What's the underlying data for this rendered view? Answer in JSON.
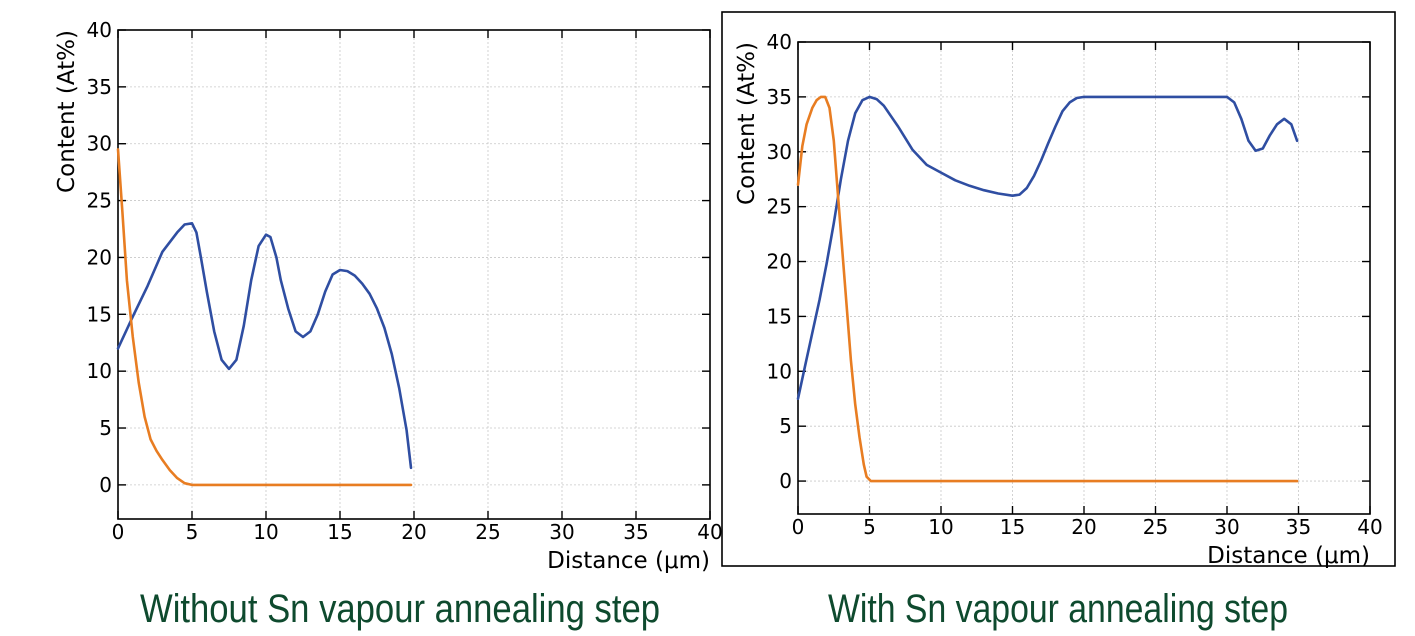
{
  "colors": {
    "series_1": "#2f4ea2",
    "series_2": "#e87d22",
    "caption": "#0e4a2e",
    "grid": "#c8c8c8"
  },
  "chart_data": [
    {
      "type": "line",
      "title": "",
      "caption": "Without Sn vapour annealing step",
      "xlabel": "Distance (μm)",
      "ylabel": "Content (At%)",
      "xlim": [
        0,
        40
      ],
      "ylim": [
        -3,
        40
      ],
      "xticks": [
        0,
        5,
        10,
        15,
        20,
        25,
        30,
        35,
        40
      ],
      "yticks": [
        0,
        5,
        10,
        15,
        20,
        25,
        30,
        35,
        40
      ],
      "grid": true,
      "framed": false,
      "series": [
        {
          "color": "blue",
          "x": [
            0,
            1,
            2,
            3,
            4,
            4.5,
            5,
            5.3,
            5.6,
            6,
            6.5,
            7,
            7.5,
            8,
            8.5,
            9,
            9.5,
            10,
            10.3,
            10.7,
            11,
            11.5,
            12,
            12.5,
            13,
            13.5,
            14,
            14.5,
            15,
            15.5,
            16,
            16.5,
            17,
            17.5,
            18,
            18.5,
            19,
            19.5,
            19.8
          ],
          "y": [
            12,
            14.8,
            17.5,
            20.5,
            22.2,
            22.9,
            23,
            22.2,
            20,
            17,
            13.5,
            11,
            10.2,
            11,
            14,
            18,
            21,
            22,
            21.8,
            20,
            18,
            15.5,
            13.5,
            13,
            13.5,
            15,
            17,
            18.5,
            18.9,
            18.8,
            18.4,
            17.7,
            16.8,
            15.5,
            13.8,
            11.5,
            8.5,
            4.8,
            1.5
          ]
        },
        {
          "color": "orange",
          "x": [
            0,
            0.3,
            0.6,
            1,
            1.4,
            1.8,
            2.2,
            2.6,
            3,
            3.5,
            4,
            4.5,
            5,
            6,
            8,
            10,
            12,
            14,
            16,
            18,
            19.8
          ],
          "y": [
            29.5,
            24,
            18,
            13,
            9,
            6,
            4,
            3,
            2.2,
            1.3,
            0.6,
            0.15,
            0,
            0,
            0,
            0,
            0,
            0,
            0,
            0,
            0
          ]
        }
      ]
    },
    {
      "type": "line",
      "title": "",
      "caption": "With Sn vapour annealing step",
      "xlabel": "Distance (μm)",
      "ylabel": "Content (At%)",
      "xlim": [
        0,
        40
      ],
      "ylim": [
        -3,
        40
      ],
      "xticks": [
        0,
        5,
        10,
        15,
        20,
        25,
        30,
        35,
        40
      ],
      "yticks": [
        0,
        5,
        10,
        15,
        20,
        25,
        30,
        35,
        40
      ],
      "grid": true,
      "framed": true,
      "series": [
        {
          "color": "blue",
          "x": [
            0,
            0.5,
            1,
            1.5,
            2,
            2.5,
            3,
            3.5,
            4,
            4.5,
            5,
            5.5,
            6,
            7,
            8,
            9,
            10,
            11,
            12,
            13,
            14,
            15,
            15.5,
            16,
            16.5,
            17,
            17.5,
            18,
            18.5,
            19,
            19.5,
            20,
            22,
            25,
            28,
            30,
            30.5,
            31,
            31.5,
            32,
            32.5,
            33,
            33.5,
            34,
            34.5,
            34.9
          ],
          "y": [
            7.5,
            10.5,
            13.5,
            16.5,
            19.8,
            23.5,
            27.5,
            31,
            33.5,
            34.7,
            35,
            34.8,
            34.2,
            32.3,
            30.2,
            28.8,
            28.1,
            27.4,
            26.9,
            26.5,
            26.2,
            26,
            26.1,
            26.7,
            27.8,
            29.2,
            30.8,
            32.3,
            33.7,
            34.5,
            34.9,
            35,
            35,
            35,
            35,
            35,
            34.5,
            33,
            31,
            30.1,
            30.3,
            31.5,
            32.5,
            33,
            32.5,
            31
          ]
        },
        {
          "color": "orange",
          "x": [
            0,
            0.3,
            0.6,
            1,
            1.3,
            1.6,
            1.9,
            2.2,
            2.5,
            2.8,
            3.1,
            3.4,
            3.7,
            4,
            4.3,
            4.6,
            4.8,
            5.1,
            6,
            10,
            15,
            20,
            25,
            30,
            34.9
          ],
          "y": [
            27,
            30.5,
            32.5,
            34,
            34.7,
            35,
            35,
            34,
            31,
            26,
            21,
            16,
            11,
            7,
            4,
            1.5,
            0.4,
            0,
            0,
            0,
            0,
            0,
            0,
            0,
            0
          ]
        }
      ]
    }
  ]
}
